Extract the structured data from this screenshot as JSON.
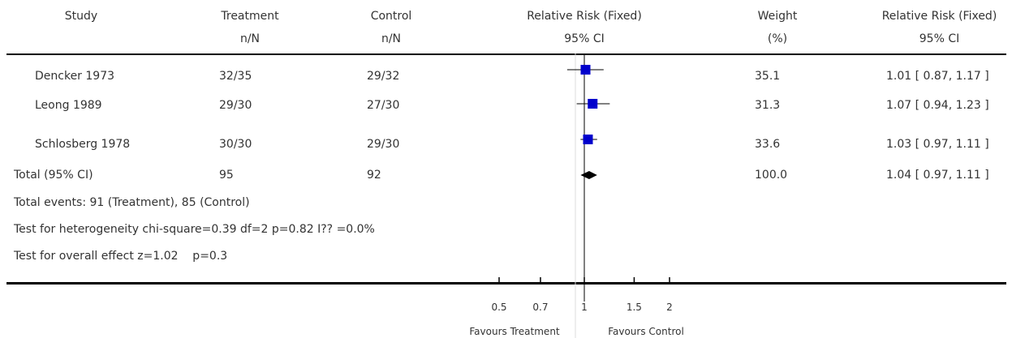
{
  "header": {
    "study": "Study",
    "treatment": "Treatment",
    "treatment_sub": "n/N",
    "control": "Control",
    "control_sub": "n/N",
    "rr": "Relative Risk (Fixed)",
    "rr_sub": "95% CI",
    "weight": "Weight",
    "weight_sub": "(%)",
    "rr2": "Relative Risk (Fixed)",
    "rr2_sub": "95% CI"
  },
  "rows": [
    {
      "study": "Dencker 1973",
      "treatment": "32/35",
      "control": "29/32",
      "weight": "35.1",
      "ci_text": "1.01 [ 0.87, 1.17 ]"
    },
    {
      "study": "Leong 1989",
      "treatment": "29/30",
      "control": "27/30",
      "weight": "31.3",
      "ci_text": "1.07 [ 0.94, 1.23 ]"
    },
    {
      "study": "Schlosberg 1978",
      "treatment": "30/30",
      "control": "29/30",
      "weight": "33.6",
      "ci_text": "1.03 [ 0.97, 1.11 ]"
    }
  ],
  "total": {
    "label": "Total (95% CI)",
    "treatment": "95",
    "control": "92",
    "weight": "100.0",
    "ci_text": "1.04 [ 0.97, 1.11 ]"
  },
  "notes": {
    "events": "Total events: 91 (Treatment), 85 (Control)",
    "heterogeneity": "Test for heterogeneity chi-square=0.39 df=2 p=0.82 I?? =0.0%",
    "overall": "Test for overall effect z=1.02    p=0.3"
  },
  "axis": {
    "favours_left": "Favours Treatment",
    "favours_right": "Favours Control"
  },
  "colors": {
    "marker": "#0000cc",
    "line": "#000000",
    "ref": "#999999"
  },
  "chart_data": {
    "type": "forest",
    "scale": "log",
    "xlim": [
      0.5,
      2
    ],
    "ticks": [
      0.5,
      0.7,
      1,
      1.5,
      2
    ],
    "tick_labels": [
      "0.5",
      "0.7",
      "1",
      "1.5",
      "2"
    ],
    "studies": [
      {
        "name": "Dencker 1973",
        "rr": 1.01,
        "lower": 0.87,
        "upper": 1.17,
        "weight": 35.1
      },
      {
        "name": "Leong 1989",
        "rr": 1.07,
        "lower": 0.94,
        "upper": 1.23,
        "weight": 31.3
      },
      {
        "name": "Schlosberg 1978",
        "rr": 1.03,
        "lower": 0.97,
        "upper": 1.11,
        "weight": 33.6
      }
    ],
    "pooled": {
      "name": "Total (95% CI)",
      "rr": 1.04,
      "lower": 0.97,
      "upper": 1.11
    }
  }
}
